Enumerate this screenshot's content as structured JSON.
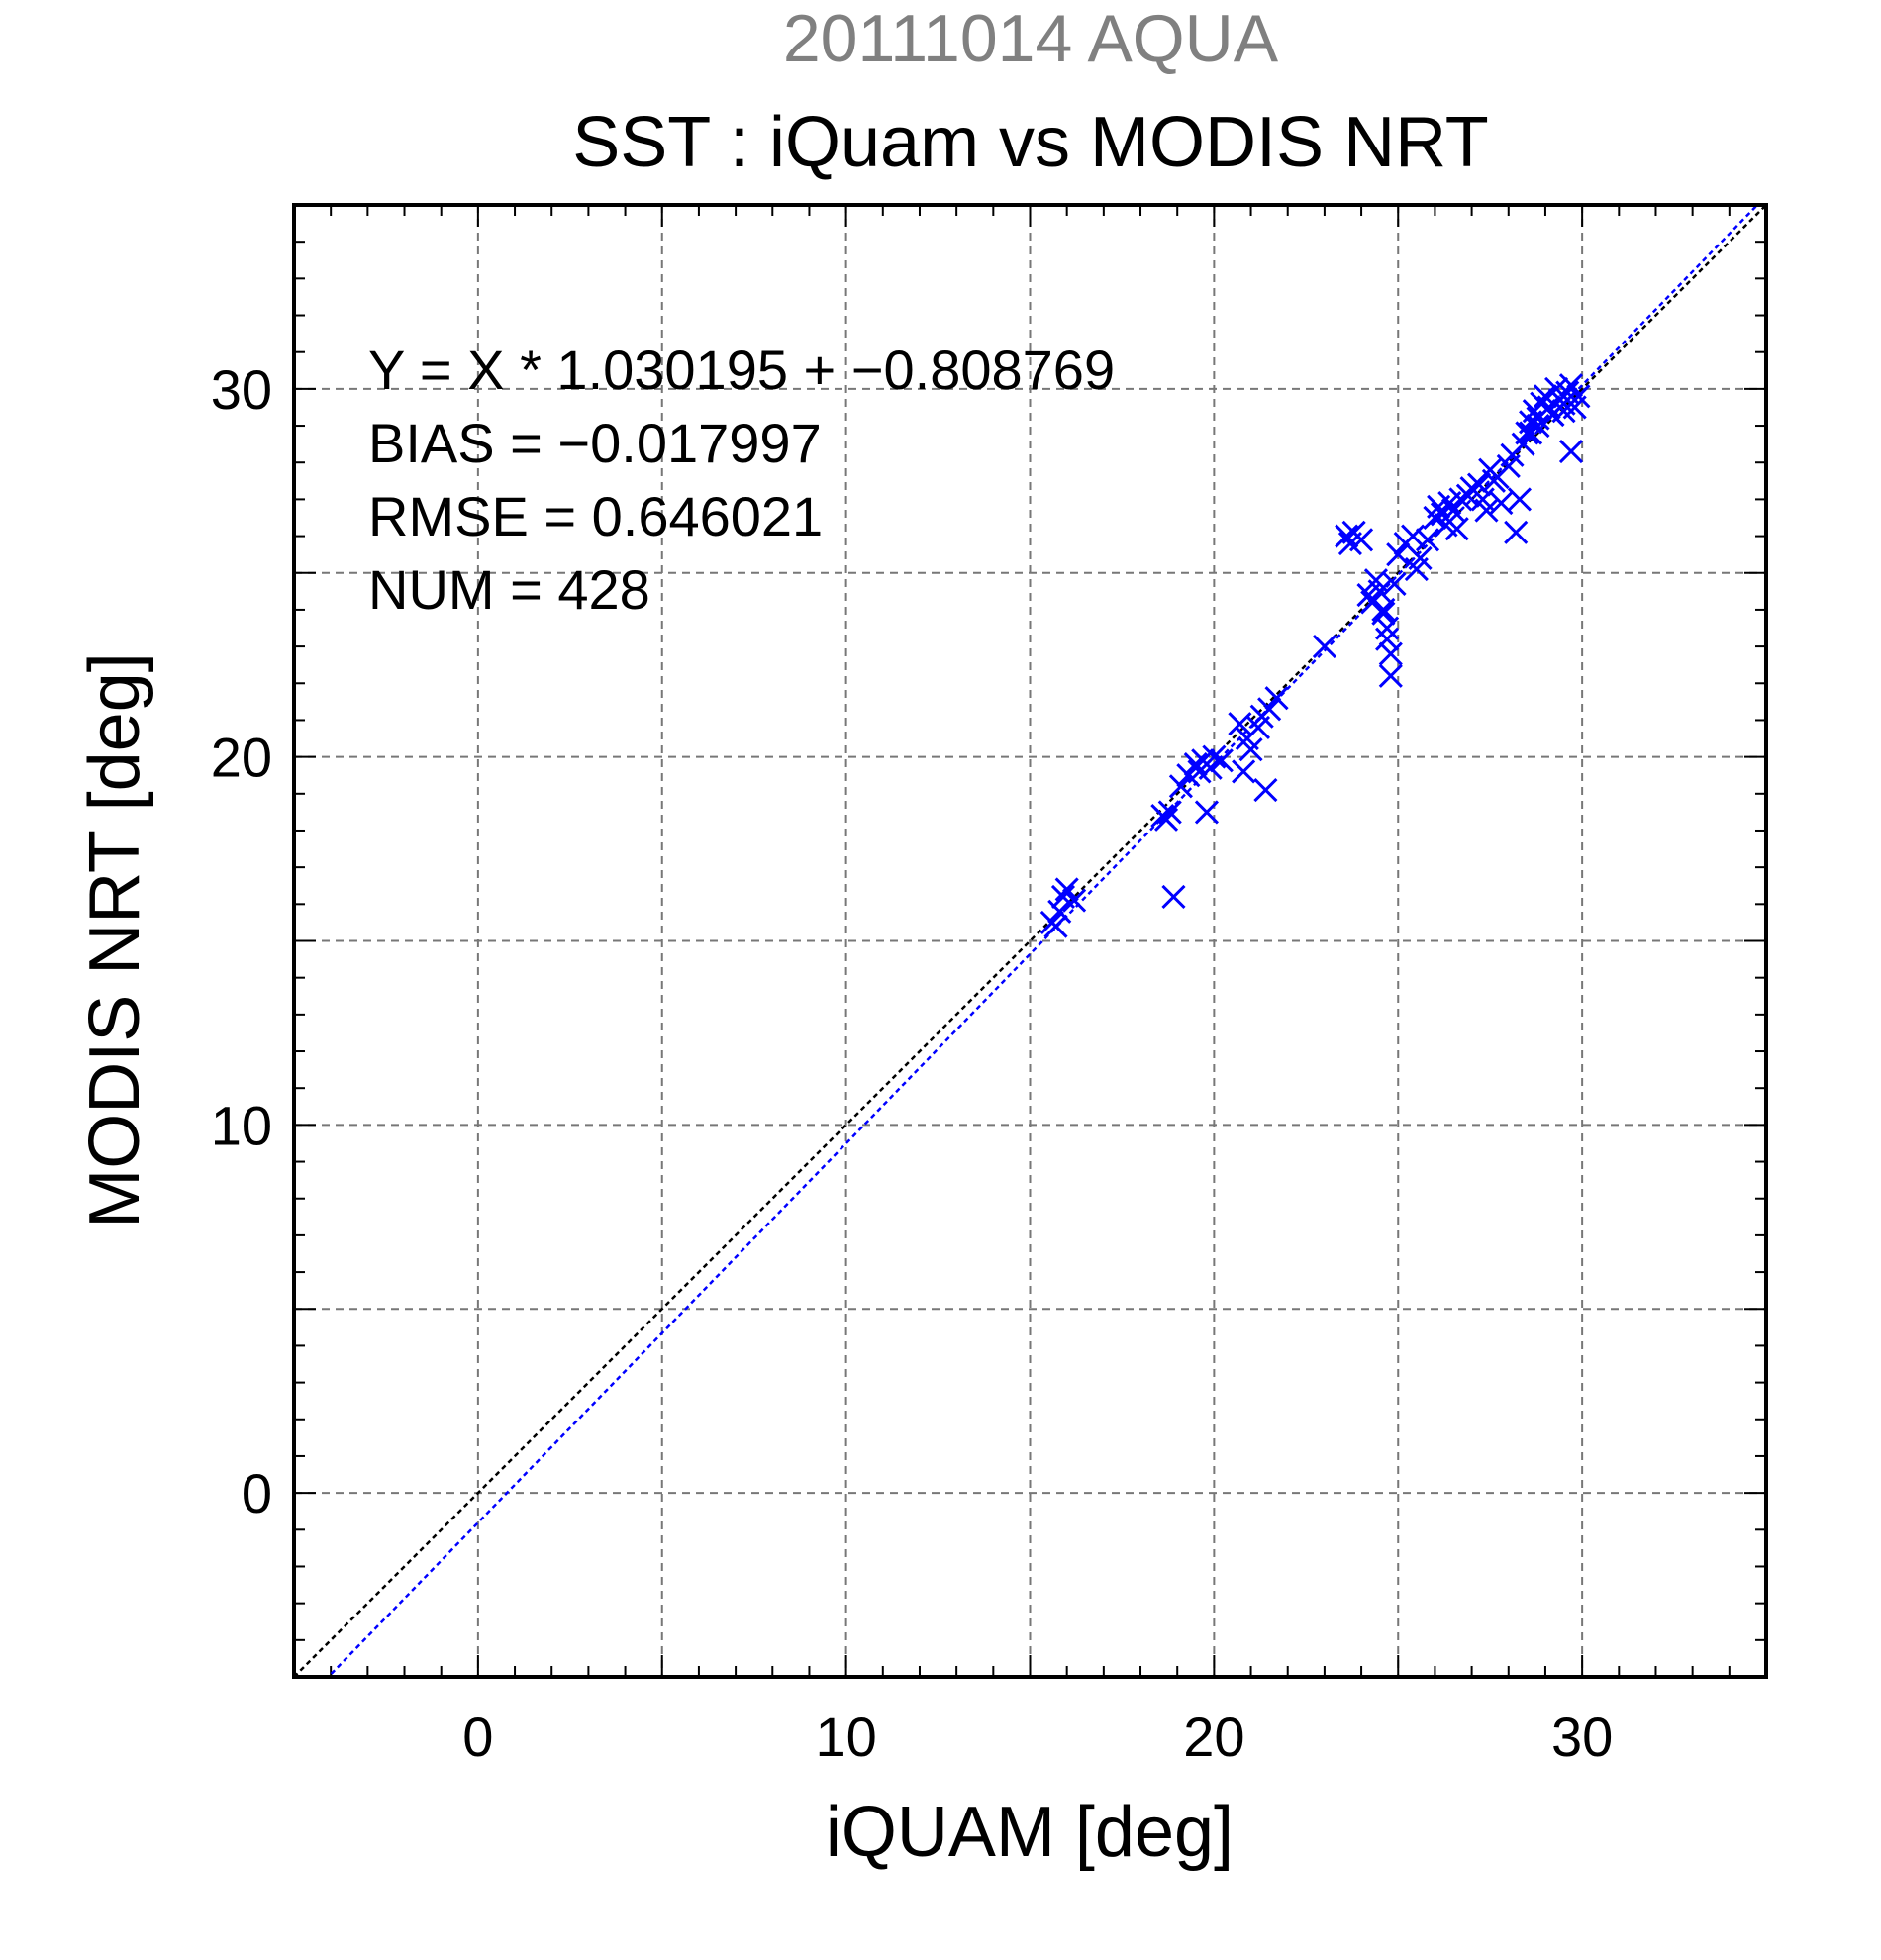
{
  "chart_data": {
    "type": "scatter",
    "title": "SST : iQuam vs MODIS NRT",
    "subtitle": "20111014 AQUA",
    "xlabel": "iQUAM [deg]",
    "ylabel": "MODIS NRT [deg]",
    "xlim": [
      -5,
      35
    ],
    "ylim": [
      -5,
      35
    ],
    "x_ticks": [
      0,
      10,
      20,
      30
    ],
    "y_ticks": [
      0,
      10,
      20,
      30
    ],
    "grid_step": 5,
    "grid": true,
    "stats": [
      "Y = X * 1.030195 + −0.808769",
      "BIAS = −0.017997",
      "RMSE = 0.646021",
      "NUM = 428"
    ],
    "fit": {
      "slope": 1.030195,
      "intercept": -0.808769
    },
    "colors": {
      "points": "#0000ff",
      "fit_line": "#0000ff",
      "identity_line": "#000000",
      "grid": "#777777",
      "subtitle": "#808080"
    },
    "series": [
      {
        "marker": "x",
        "x": [
          15.6,
          15.8,
          15.9,
          16.0,
          16.2,
          15.7,
          18.6,
          18.7,
          18.9,
          18.8,
          19.1,
          19.3,
          19.5,
          19.7,
          19.8,
          20.0,
          20.2,
          19.9,
          19.6,
          20.8,
          20.9,
          21.0,
          21.2,
          21.4,
          21.5,
          21.7,
          20.7,
          21.3,
          23.0,
          23.6,
          23.8,
          24.0,
          23.7,
          24.2,
          24.4,
          24.5,
          24.6,
          24.7,
          24.8,
          24.3,
          24.9,
          24.6,
          24.8,
          24.7,
          25.0,
          25.2,
          25.4,
          25.6,
          25.8,
          25.5,
          26.0,
          26.1,
          26.3,
          26.4,
          26.5,
          26.6,
          26.7,
          26.2,
          26.9,
          27.0,
          27.2,
          27.3,
          27.5,
          27.6,
          27.8,
          28.0,
          28.1,
          27.4,
          27.7,
          28.2,
          28.3,
          28.5,
          28.6,
          28.7,
          28.8,
          28.9,
          29.0,
          29.1,
          29.2,
          29.3,
          29.4,
          29.5,
          29.6,
          29.7,
          29.8,
          29.9,
          28.6,
          28.8,
          29.2,
          29.5,
          29.7,
          28.4
        ],
        "y": [
          15.5,
          15.8,
          16.2,
          16.4,
          16.1,
          15.4,
          18.4,
          18.3,
          16.2,
          18.5,
          19.2,
          19.5,
          19.8,
          19.9,
          18.5,
          20.0,
          19.9,
          19.7,
          19.6,
          19.6,
          20.5,
          20.2,
          20.8,
          19.1,
          21.3,
          21.6,
          20.9,
          21.1,
          23.0,
          26.0,
          26.1,
          25.9,
          25.8,
          24.4,
          24.8,
          24.5,
          23.9,
          23.5,
          22.8,
          24.2,
          24.7,
          24.0,
          22.2,
          23.2,
          25.5,
          25.8,
          26.0,
          25.4,
          25.9,
          25.1,
          26.5,
          26.8,
          26.3,
          26.9,
          26.7,
          26.2,
          27.0,
          26.6,
          27.1,
          27.3,
          27.4,
          27.0,
          27.8,
          27.5,
          26.9,
          27.9,
          28.2,
          26.7,
          27.6,
          26.1,
          27.0,
          28.8,
          29.1,
          29.4,
          29.2,
          29.6,
          29.8,
          29.5,
          29.3,
          30.0,
          29.7,
          29.4,
          29.9,
          30.1,
          29.5,
          29.8,
          28.8,
          29.0,
          29.3,
          29.6,
          28.3,
          28.5
        ]
      }
    ]
  }
}
